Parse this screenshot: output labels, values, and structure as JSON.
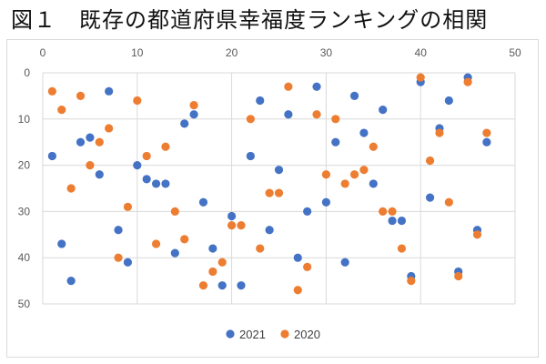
{
  "chart_data": {
    "type": "scatter",
    "title": "図１　既存の都道府県幸福度ランキングの相関",
    "xlabel": "",
    "ylabel": "",
    "xlim": [
      0,
      50
    ],
    "ylim": [
      0,
      50
    ],
    "y_inverted": true,
    "x_ticks": [
      0,
      10,
      20,
      30,
      40,
      50
    ],
    "y_ticks": [
      0,
      10,
      20,
      30,
      40,
      50
    ],
    "grid": true,
    "legend_position": "bottom",
    "series": [
      {
        "name": "2021",
        "color": "#4472C4",
        "points": [
          [
            1,
            18
          ],
          [
            2,
            37
          ],
          [
            3,
            45
          ],
          [
            4,
            15
          ],
          [
            5,
            14
          ],
          [
            6,
            22
          ],
          [
            7,
            4
          ],
          [
            8,
            34
          ],
          [
            9,
            41
          ],
          [
            10,
            20
          ],
          [
            11,
            23
          ],
          [
            12,
            24
          ],
          [
            13,
            24
          ],
          [
            14,
            39
          ],
          [
            15,
            11
          ],
          [
            16,
            9
          ],
          [
            17,
            28
          ],
          [
            18,
            38
          ],
          [
            19,
            46
          ],
          [
            20,
            31
          ],
          [
            21,
            46
          ],
          [
            22,
            18
          ],
          [
            23,
            6
          ],
          [
            24,
            34
          ],
          [
            25,
            21
          ],
          [
            26,
            9
          ],
          [
            27,
            40
          ],
          [
            28,
            30
          ],
          [
            29,
            3
          ],
          [
            30,
            28
          ],
          [
            31,
            15
          ],
          [
            32,
            41
          ],
          [
            33,
            5
          ],
          [
            34,
            13
          ],
          [
            35,
            24
          ],
          [
            36,
            8
          ],
          [
            37,
            32
          ],
          [
            38,
            32
          ],
          [
            39,
            44
          ],
          [
            40,
            2
          ],
          [
            41,
            27
          ],
          [
            42,
            12
          ],
          [
            43,
            6
          ],
          [
            44,
            43
          ],
          [
            45,
            1
          ],
          [
            46,
            34
          ],
          [
            47,
            15
          ]
        ]
      },
      {
        "name": "2020",
        "color": "#ED7D31",
        "points": [
          [
            1,
            4
          ],
          [
            2,
            8
          ],
          [
            3,
            25
          ],
          [
            4,
            5
          ],
          [
            5,
            20
          ],
          [
            6,
            15
          ],
          [
            7,
            12
          ],
          [
            8,
            40
          ],
          [
            9,
            29
          ],
          [
            10,
            6
          ],
          [
            11,
            18
          ],
          [
            12,
            37
          ],
          [
            13,
            16
          ],
          [
            14,
            30
          ],
          [
            15,
            36
          ],
          [
            16,
            7
          ],
          [
            17,
            46
          ],
          [
            18,
            43
          ],
          [
            19,
            41
          ],
          [
            20,
            33
          ],
          [
            21,
            33
          ],
          [
            22,
            10
          ],
          [
            23,
            38
          ],
          [
            24,
            26
          ],
          [
            25,
            26
          ],
          [
            26,
            3
          ],
          [
            27,
            47
          ],
          [
            28,
            42
          ],
          [
            29,
            9
          ],
          [
            30,
            22
          ],
          [
            31,
            10
          ],
          [
            32,
            24
          ],
          [
            33,
            22
          ],
          [
            34,
            21
          ],
          [
            35,
            16
          ],
          [
            36,
            30
          ],
          [
            37,
            30
          ],
          [
            38,
            38
          ],
          [
            39,
            45
          ],
          [
            40,
            1
          ],
          [
            41,
            19
          ],
          [
            42,
            13
          ],
          [
            43,
            28
          ],
          [
            44,
            44
          ],
          [
            45,
            2
          ],
          [
            46,
            35
          ],
          [
            47,
            13
          ]
        ]
      }
    ]
  }
}
